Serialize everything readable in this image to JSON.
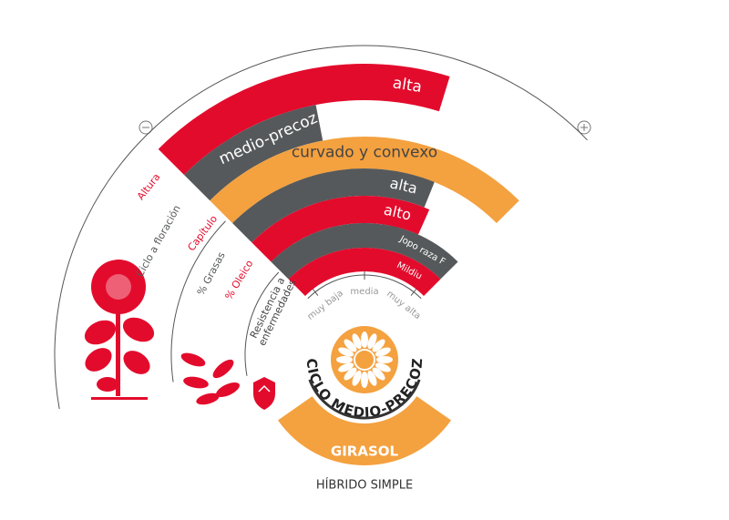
{
  "attributes": [
    {
      "label": "Altura",
      "value": "alta"
    },
    {
      "label": "Ciclo a floración",
      "value": "medio-precoz"
    },
    {
      "label": "Capítulo",
      "value": "curvado y convexo"
    },
    {
      "label": "% Grasas",
      "value": "alta"
    },
    {
      "label": "% Oleico",
      "value": "alto"
    },
    {
      "label": [
        "Resistencia a",
        "enfermedades"
      ],
      "values": [
        "Jopo raza F",
        "Mildiu"
      ]
    }
  ],
  "scale": [
    "muy baja",
    "media",
    "muy alta"
  ],
  "cycle": "CICLO MEDIO-PRECOZ",
  "crop": "GIRASOL",
  "hybrid": "HÍBRIDO SIMPLE"
}
